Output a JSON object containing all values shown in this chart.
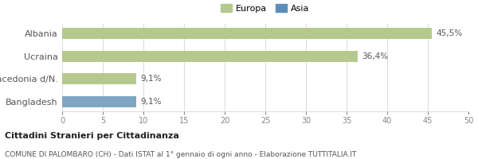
{
  "categories": [
    "Albania",
    "Ucraina",
    "Macedonia d/N.",
    "Bangladesh"
  ],
  "values": [
    45.5,
    36.4,
    9.1,
    9.1
  ],
  "colors": [
    "#b5c98e",
    "#b5c98e",
    "#b5c98e",
    "#7ea6c4"
  ],
  "bar_labels": [
    "45,5%",
    "36,4%",
    "9,1%",
    "9,1%"
  ],
  "legend_europa_color": "#b5c98e",
  "legend_asia_color": "#5b8db8",
  "xlim": [
    0,
    50
  ],
  "xticks": [
    0,
    5,
    10,
    15,
    20,
    25,
    30,
    35,
    40,
    45,
    50
  ],
  "title_bold": "Cittadini Stranieri per Cittadinanza",
  "subtitle": "COMUNE DI PALOMBARO (CH) - Dati ISTAT al 1° gennaio di ogni anno - Elaborazione TUTTITALIA.IT",
  "background_color": "#ffffff",
  "bar_height": 0.5,
  "grid_color": "#dddddd"
}
